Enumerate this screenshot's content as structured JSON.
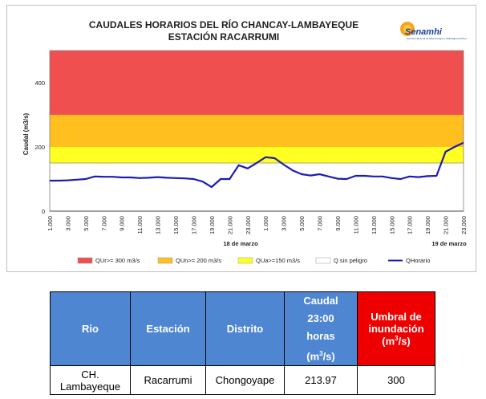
{
  "chart_data": {
    "type": "line",
    "title": [
      "CAUDALES HORARIOS DEL RÍO CHANCAY-LAMBAYEQUE",
      "ESTACIÓN RACARRUMI"
    ],
    "ylabel": "Caudal (m3/s)",
    "xlabel": "",
    "ylim": [
      0,
      500
    ],
    "yticks": [
      0,
      200,
      400
    ],
    "x_tick_labels": [
      "1.000",
      "3.000",
      "5.000",
      "7.000",
      "9.000",
      "11.000",
      "13.000",
      "15.000",
      "17.000",
      "19.000",
      "21.000",
      "23.000",
      "1.000",
      "3.000",
      "5.000",
      "7.000",
      "9.000",
      "11.000",
      "13.000",
      "15.000",
      "17.000",
      "19.000",
      "21.000",
      "23.000"
    ],
    "date_labels": [
      "18 de marzo",
      "19 de marzo"
    ],
    "thresholds": [
      {
        "name": "QUr>= 300 m3/s",
        "from": 300,
        "to": 500,
        "color": "#f04f4f"
      },
      {
        "name": "QUn>= 200 m3/s",
        "from": 200,
        "to": 300,
        "color": "#ffbf1e"
      },
      {
        "name": "QUa>=150 m3/s",
        "from": 150,
        "to": 200,
        "color": "#ffff22"
      },
      {
        "name": "Q sin peligro",
        "from": 0,
        "to": 150,
        "color": "#ffffff"
      }
    ],
    "series": [
      {
        "name": "QHorario",
        "color": "#1c1cb4",
        "values": [
          95,
          95,
          96,
          98,
          100,
          108,
          107,
          107,
          105,
          105,
          103,
          104,
          106,
          104,
          103,
          102,
          100,
          92,
          75,
          100,
          100,
          143,
          133,
          150,
          168,
          165,
          145,
          127,
          115,
          111,
          115,
          108,
          101,
          100,
          110,
          110,
          108,
          108,
          103,
          100,
          108,
          106,
          109,
          110,
          185,
          200,
          213
        ]
      }
    ],
    "legend_position": "bottom",
    "grid": false
  },
  "logo": {
    "text": "Senamhi",
    "subtext": "Servicio Nacional de Meteorología e Hidrología del Perú"
  },
  "table": {
    "headers": {
      "rio": "Rio",
      "estacion": "Estación",
      "distrito": "Distrito",
      "caudal_1": "Caudal",
      "caudal_2": "23:00",
      "caudal_3": "horas",
      "caudal_4": "(m",
      "caudal_sup": "3",
      "caudal_5": "/s)",
      "umbral_1": "Umbral de",
      "umbral_2": "inundación",
      "umbral_3": "(m",
      "umbral_sup": "3",
      "umbral_4": "/s)"
    },
    "row": {
      "rio_1": "CH.",
      "rio_2": "Lambayeque",
      "estacion": "Racarrumi",
      "distrito": "Chongoyape",
      "caudal": "213.97",
      "umbral": "300"
    }
  }
}
